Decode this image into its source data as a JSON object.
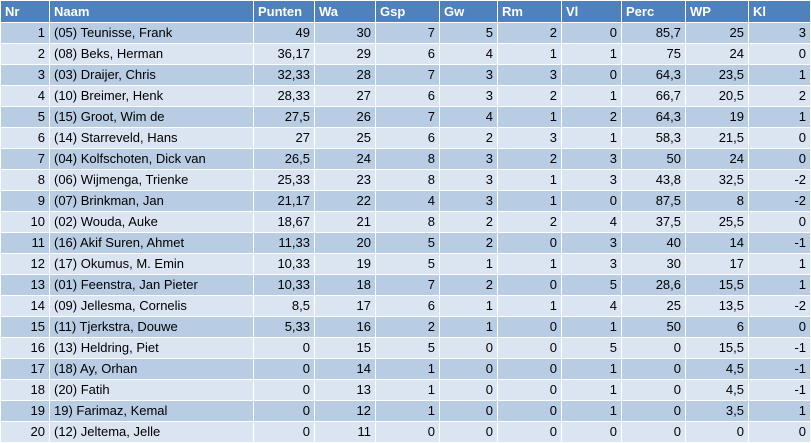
{
  "table": {
    "columns": [
      "Nr",
      "Naam",
      "Punten",
      "Wa",
      "Gsp",
      "Gw",
      "Rm",
      "Vl",
      "Perc",
      "WP",
      "Kl"
    ],
    "rows": [
      [
        "1",
        "(05) Teunisse, Frank",
        "49",
        "30",
        "7",
        "5",
        "2",
        "0",
        "85,7",
        "25",
        "3"
      ],
      [
        "2",
        "(08) Beks, Herman",
        "36,17",
        "29",
        "6",
        "4",
        "1",
        "1",
        "75",
        "24",
        "0"
      ],
      [
        "3",
        "(03) Draijer, Chris",
        "32,33",
        "28",
        "7",
        "3",
        "3",
        "0",
        "64,3",
        "23,5",
        "1"
      ],
      [
        "4",
        "(10) Breimer, Henk",
        "28,33",
        "27",
        "6",
        "3",
        "2",
        "1",
        "66,7",
        "20,5",
        "2"
      ],
      [
        "5",
        "(15) Groot, Wim de",
        "27,5",
        "26",
        "7",
        "4",
        "1",
        "2",
        "64,3",
        "19",
        "1"
      ],
      [
        "6",
        "(14) Starreveld, Hans",
        "27",
        "25",
        "6",
        "2",
        "3",
        "1",
        "58,3",
        "21,5",
        "0"
      ],
      [
        "7",
        "(04) Kolfschoten, Dick van",
        "26,5",
        "24",
        "8",
        "3",
        "2",
        "3",
        "50",
        "24",
        "0"
      ],
      [
        "8",
        "(06) Wijmenga, Trienke",
        "25,33",
        "23",
        "8",
        "3",
        "1",
        "3",
        "43,8",
        "32,5",
        "-2"
      ],
      [
        "9",
        "(07) Brinkman, Jan",
        "21,17",
        "22",
        "4",
        "3",
        "1",
        "0",
        "87,5",
        "8",
        "-2"
      ],
      [
        "10",
        "(02) Wouda, Auke",
        "18,67",
        "21",
        "8",
        "2",
        "2",
        "4",
        "37,5",
        "25,5",
        "0"
      ],
      [
        "11",
        "(16) Akif Suren, Ahmet",
        "11,33",
        "20",
        "5",
        "2",
        "0",
        "3",
        "40",
        "14",
        "-1"
      ],
      [
        "12",
        "(17) Okumus, M. Emin",
        "10,33",
        "19",
        "5",
        "1",
        "1",
        "3",
        "30",
        "17",
        "1"
      ],
      [
        "13",
        "(01) Feenstra, Jan Pieter",
        "10,33",
        "18",
        "7",
        "2",
        "0",
        "5",
        "28,6",
        "15,5",
        "1"
      ],
      [
        "14",
        "(09) Jellesma, Cornelis",
        "8,5",
        "17",
        "6",
        "1",
        "1",
        "4",
        "25",
        "13,5",
        "-2"
      ],
      [
        "15",
        "(11) Tjerkstra, Douwe",
        "5,33",
        "16",
        "2",
        "1",
        "0",
        "1",
        "50",
        "6",
        "0"
      ],
      [
        "16",
        "(13) Heldring, Piet",
        "0",
        "15",
        "5",
        "0",
        "0",
        "5",
        "0",
        "15,5",
        "-1"
      ],
      [
        "17",
        "(18)  Ay, Orhan",
        "0",
        "14",
        "1",
        "0",
        "0",
        "1",
        "0",
        "4,5",
        "-1"
      ],
      [
        "18",
        "(20) Fatih",
        "0",
        "13",
        "1",
        "0",
        "0",
        "1",
        "0",
        "4,5",
        "-1"
      ],
      [
        "19",
        "19) Farimaz, Kemal",
        "0",
        "12",
        "1",
        "0",
        "0",
        "1",
        "0",
        "3,5",
        "1"
      ],
      [
        "20",
        "(12) Jeltema, Jelle",
        "0",
        "11",
        "0",
        "0",
        "0",
        "0",
        "0",
        "0",
        "0"
      ]
    ]
  }
}
